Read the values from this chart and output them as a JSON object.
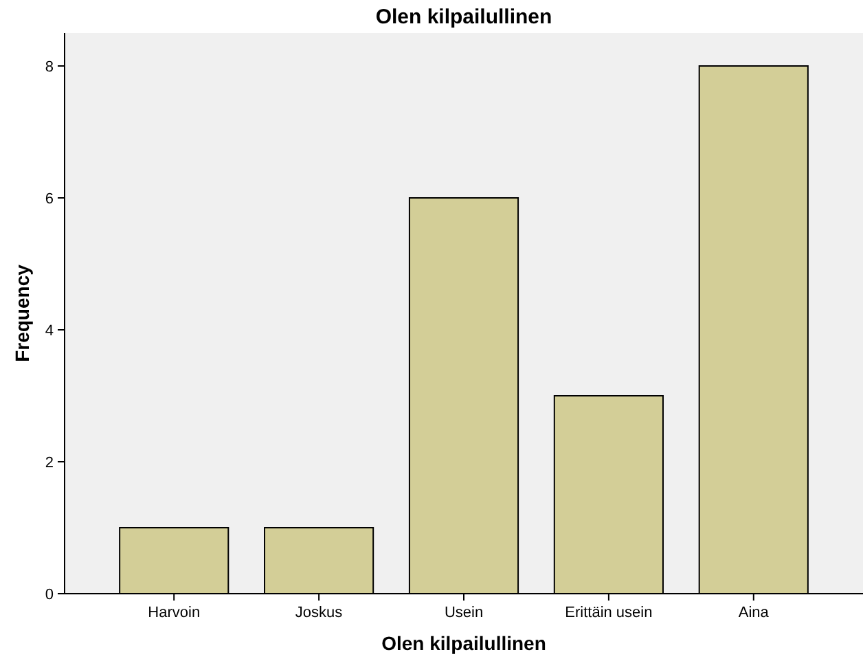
{
  "chart_data": {
    "type": "bar",
    "title": "Olen kilpailullinen",
    "xlabel": "Olen kilpailullinen",
    "ylabel": "Frequency",
    "categories": [
      "Harvoin",
      "Joskus",
      "Usein",
      "Erittäin usein",
      "Aina"
    ],
    "values": [
      1,
      1,
      6,
      3,
      8
    ],
    "color": "#d3ce97",
    "ylim": [
      0,
      8.5
    ],
    "yticks": [
      0,
      2,
      4,
      6,
      8
    ],
    "grid": false
  }
}
